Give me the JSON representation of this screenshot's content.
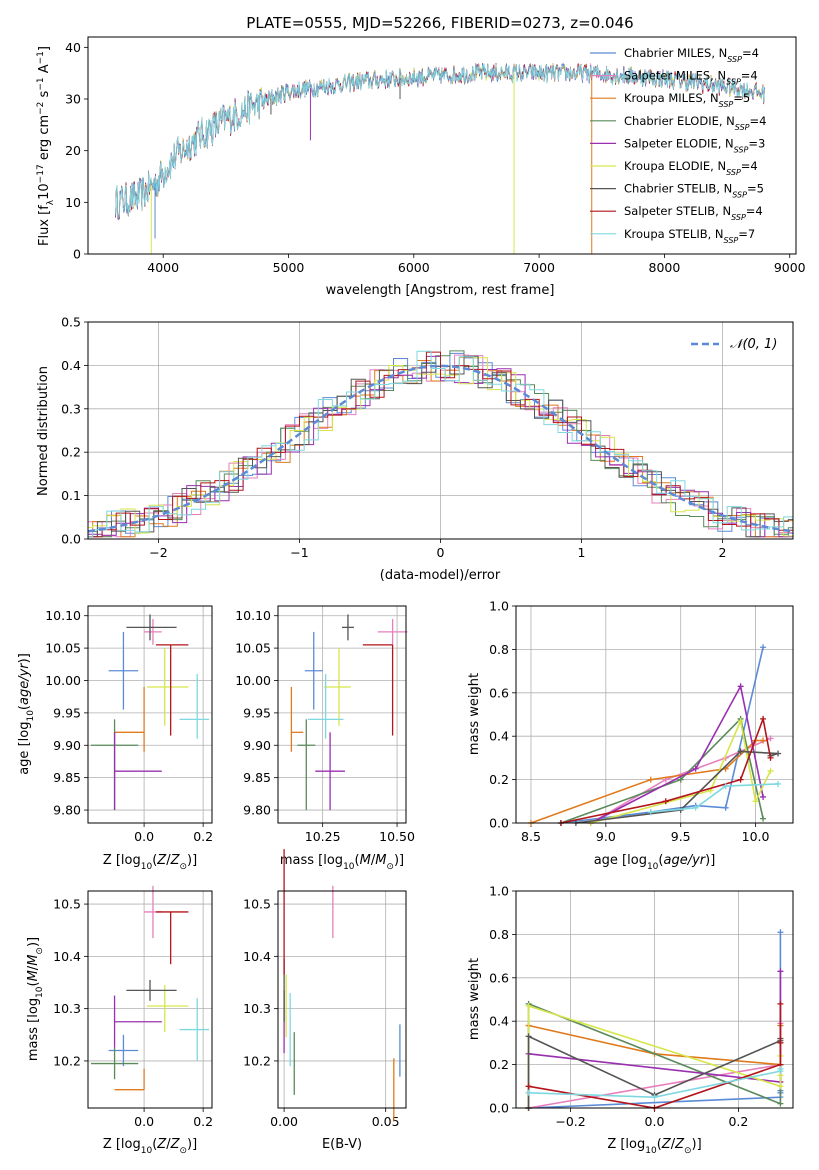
{
  "figure": {
    "title": "PLATE=0555, MJD=52266, FIBERID=0273, z=0.046"
  },
  "models": [
    {
      "name": "Chabrier MILES",
      "nssp": "4",
      "color": "#5b8bd6"
    },
    {
      "name": "Salpeter MILES",
      "nssp": "4",
      "color": "#e77fbf"
    },
    {
      "name": "Kroupa MILES",
      "nssp": "5",
      "color": "#e07a1c"
    },
    {
      "name": "Chabrier ELODIE",
      "nssp": "4",
      "color": "#5a8a5a"
    },
    {
      "name": "Salpeter ELODIE",
      "nssp": "3",
      "color": "#9a2fb0"
    },
    {
      "name": "Kroupa ELODIE",
      "nssp": "4",
      "color": "#d6e64a"
    },
    {
      "name": "Chabrier STELIB",
      "nssp": "5",
      "color": "#555555"
    },
    {
      "name": "Salpeter STELIB",
      "nssp": "4",
      "color": "#b3151a"
    },
    {
      "name": "Kroupa STELIB",
      "nssp": "7",
      "color": "#7fd8e0"
    }
  ],
  "chart_data": [
    {
      "id": "spectrum",
      "type": "line",
      "xlabel": "wavelength [Angstrom, rest frame]",
      "ylabel": "Flux [f_λ 10^-17 erg cm^-2 s^-1 A^-1]",
      "xlim": [
        3400,
        9050
      ],
      "ylim": [
        0,
        42
      ],
      "xticks": [
        4000,
        5000,
        6000,
        7000,
        8000,
        9000
      ],
      "yticks": [
        0,
        10,
        20,
        30,
        40
      ],
      "grid": false,
      "legend": "upper right",
      "nssp_label": "N",
      "nssp_sub": "SSP",
      "continuum": {
        "x": [
          3620,
          3800,
          3950,
          4100,
          4300,
          4500,
          4700,
          5000,
          5300,
          5600,
          5900,
          6200,
          6500,
          6800,
          7100,
          7400,
          7700,
          8000,
          8300,
          8600,
          8800
        ],
        "y": [
          10,
          11,
          14,
          19,
          23,
          26,
          28.5,
          31.5,
          32.5,
          33.5,
          34,
          34.5,
          35,
          35,
          35,
          35,
          34.5,
          34,
          33,
          32,
          31
        ]
      },
      "dips": [
        {
          "x": 3905,
          "y": 0
        },
        {
          "x": 3935,
          "y": 3
        },
        {
          "x": 4860,
          "y": 27
        },
        {
          "x": 5175,
          "y": 22
        },
        {
          "x": 5890,
          "y": 30
        },
        {
          "x": 6800,
          "y": 0
        },
        {
          "x": 7420,
          "y": 0
        }
      ]
    },
    {
      "id": "residuals",
      "type": "histogram",
      "xlabel": "(data-model)/error",
      "ylabel": "Normed distribution",
      "xlim": [
        -2.5,
        2.5
      ],
      "ylim": [
        0,
        0.5
      ],
      "xticks": [
        -2,
        -1,
        0,
        1,
        2
      ],
      "yticks": [
        0,
        0.1,
        0.2,
        0.3,
        0.4,
        0.5
      ],
      "grid": true,
      "bin_width": 0.1,
      "reference": {
        "name": "𝒩(0, 1)",
        "mean": 0,
        "sigma": 1
      },
      "legend": "upper right"
    },
    {
      "id": "age-vs-Z",
      "type": "errorbar",
      "xlabel": "Z [log10(Z/Z⊙)]",
      "ylabel": "age  [log10(age/yr)]",
      "xlim": [
        -0.19,
        0.23
      ],
      "ylim": [
        9.78,
        10.115
      ],
      "xticks": [
        0.0,
        0.2
      ],
      "yticks": [
        9.8,
        9.85,
        9.9,
        9.95,
        10.0,
        10.05,
        10.1
      ],
      "grid": true
    },
    {
      "id": "age-vs-mass",
      "type": "errorbar",
      "xlabel": "mass [log10(M/M⊙)]",
      "ylabel": "",
      "xlim": [
        10.1,
        10.53
      ],
      "ylim": [
        9.78,
        10.115
      ],
      "xticks": [
        10.25,
        10.5
      ],
      "yticks": [
        9.8,
        9.85,
        9.9,
        9.95,
        10.0,
        10.05,
        10.1
      ],
      "grid": true
    },
    {
      "id": "massweight-vs-age",
      "type": "line",
      "xlabel": "age  [log10(age/yr)]",
      "ylabel": "mass weight",
      "xlim": [
        8.4,
        10.25
      ],
      "ylim": [
        0,
        1.0
      ],
      "xticks": [
        8.5,
        9.0,
        9.5,
        10.0
      ],
      "yticks": [
        0,
        0.2,
        0.4,
        0.6,
        0.8,
        1.0
      ],
      "grid": true
    },
    {
      "id": "mass-vs-Z",
      "type": "errorbar",
      "xlabel": "Z [log10(Z/Z⊙)]",
      "ylabel": "mass [log10(M/M⊙)]",
      "xlim": [
        -0.19,
        0.23
      ],
      "ylim": [
        10.11,
        10.525
      ],
      "xticks": [
        0.0,
        0.2
      ],
      "yticks": [
        10.2,
        10.3,
        10.4,
        10.5
      ],
      "grid": true
    },
    {
      "id": "mass-vs-EBV",
      "type": "errorbar",
      "xlabel": "E(B-V)",
      "ylabel": "",
      "xlim": [
        -0.003,
        0.06
      ],
      "ylim": [
        10.11,
        10.525
      ],
      "xticks": [
        0.0,
        0.05
      ],
      "yticks": [
        10.2,
        10.3,
        10.4,
        10.5
      ],
      "grid": true
    },
    {
      "id": "massweight-vs-Z",
      "type": "line",
      "xlabel": "Z [log10(Z/Z⊙)]",
      "ylabel": "mass weight",
      "xlim": [
        -0.33,
        0.33
      ],
      "ylim": [
        0,
        1.0
      ],
      "xticks": [
        -0.2,
        0.0,
        0.2
      ],
      "yticks": [
        0,
        0.2,
        0.4,
        0.6,
        0.8,
        1.0
      ],
      "grid": true
    }
  ],
  "fits": [
    {
      "Z": -0.07,
      "Zerr": [
        0.05,
        0.05
      ],
      "age": 10.015,
      "ageerr": [
        0.06,
        0.06
      ],
      "mass": 10.22,
      "masserr": [
        0.03,
        0.03
      ],
      "ebv": 0.057,
      "ebverr": 0.05,
      "ssp": {
        "age": [
          8.7,
          9.3,
          9.6,
          9.8,
          10.05
        ],
        "Z": [
          -0.3,
          0.3,
          0.3,
          0.3,
          0.3
        ],
        "w": [
          0.0,
          0.05,
          0.08,
          0.07,
          0.81
        ]
      }
    },
    {
      "Z": 0.03,
      "Zerr": [
        0.03,
        0.03
      ],
      "age": 10.075,
      "ageerr": [
        0.02,
        0.02
      ],
      "mass": 10.485,
      "masserr": [
        0.05,
        0.05
      ],
      "ebv": 0.024,
      "ebverr": 0.05,
      "ssp": {
        "age": [
          8.9,
          9.4,
          9.8,
          10.1
        ],
        "Z": [
          -0.3,
          0.3,
          0.3,
          0.3
        ],
        "w": [
          0.0,
          0.2,
          0.3,
          0.39
        ]
      }
    },
    {
      "Z": 0.0,
      "Zerr": [
        0.1,
        0.0
      ],
      "age": 9.92,
      "ageerr": [
        0.03,
        0.07
      ],
      "mass": 10.145,
      "masserr": [
        0.0,
        0.04
      ],
      "ebv": 0.054,
      "ebverr": 0.06,
      "ssp": {
        "age": [
          8.5,
          9.3,
          9.8,
          10.0,
          10.05
        ],
        "Z": [
          -0.3,
          0.3,
          0.0,
          -0.3,
          0.3
        ],
        "w": [
          0.0,
          0.2,
          0.25,
          0.38,
          0.38
        ]
      }
    },
    {
      "Z": -0.1,
      "Zerr": [
        0.08,
        0.08
      ],
      "age": 9.9,
      "ageerr": [
        0.1,
        0.04
      ],
      "mass": 10.195,
      "masserr": [
        0.03,
        0.03
      ],
      "ebv": 0.005,
      "ebverr": 0.06,
      "ssp": {
        "age": [
          8.7,
          9.5,
          9.9,
          10.05
        ],
        "Z": [
          -0.3,
          0.3,
          -0.3,
          0.3
        ],
        "w": [
          0.0,
          0.2,
          0.48,
          0.02
        ]
      }
    },
    {
      "Z": -0.1,
      "Zerr": [
        0.0,
        0.16
      ],
      "age": 9.86,
      "ageerr": [
        0.06,
        0.06
      ],
      "mass": 10.275,
      "masserr": [
        0.05,
        0.05
      ],
      "ebv": 0.0,
      "ebverr": 0.06,
      "ssp": {
        "age": [
          8.9,
          9.6,
          9.9,
          10.05
        ],
        "Z": [
          -0.3,
          -0.3,
          0.3,
          0.3
        ],
        "w": [
          0.0,
          0.25,
          0.63,
          0.12
        ]
      }
    },
    {
      "Z": 0.07,
      "Zerr": [
        0.06,
        0.08
      ],
      "age": 9.99,
      "ageerr": [
        0.06,
        0.06
      ],
      "mass": 10.305,
      "masserr": [
        0.05,
        0.04
      ],
      "ebv": 0.001,
      "ebverr": 0.06,
      "ssp": {
        "age": [
          8.9,
          9.7,
          9.9,
          10.0,
          10.1
        ],
        "Z": [
          -0.3,
          0.3,
          -0.3,
          0.3,
          0.3
        ],
        "w": [
          0.0,
          0.15,
          0.47,
          0.1,
          0.24
        ]
      }
    },
    {
      "Z": 0.02,
      "Zerr": [
        0.08,
        0.09
      ],
      "age": 10.082,
      "ageerr": [
        0.02,
        0.02
      ],
      "mass": 10.335,
      "masserr": [
        0.02,
        0.02
      ],
      "ebv": 0.0,
      "ebverr": 0.06,
      "ssp": {
        "age": [
          8.8,
          9.5,
          9.9,
          10.15,
          10.1
        ],
        "Z": [
          -0.3,
          0.0,
          -0.3,
          0.3,
          0.3
        ],
        "w": [
          0.0,
          0.06,
          0.33,
          0.32,
          0.31
        ]
      }
    },
    {
      "Z": 0.09,
      "Zerr": [
        0.05,
        0.06
      ],
      "age": 10.055,
      "ageerr": [
        0.14,
        0.0
      ],
      "mass": 10.485,
      "masserr": [
        0.1,
        0.0
      ],
      "ebv": 0.0,
      "ebverr": 0.12,
      "ssp": {
        "age": [
          8.7,
          9.4,
          9.9,
          10.05,
          10.1
        ],
        "Z": [
          0.0,
          -0.3,
          0.3,
          0.3,
          0.3
        ],
        "w": [
          0.0,
          0.1,
          0.2,
          0.48,
          0.3
        ]
      }
    },
    {
      "Z": 0.18,
      "Zerr": [
        0.06,
        0.04
      ],
      "age": 9.94,
      "ageerr": [
        0.03,
        0.07
      ],
      "mass": 10.26,
      "masserr": [
        0.06,
        0.06
      ],
      "ebv": 0.003,
      "ebverr": 0.07,
      "ssp": {
        "age": [
          9.3,
          9.6,
          9.8,
          10.15
        ],
        "Z": [
          0.0,
          -0.3,
          0.3,
          0.3
        ],
        "w": [
          0.05,
          0.07,
          0.17,
          0.18
        ]
      }
    }
  ]
}
